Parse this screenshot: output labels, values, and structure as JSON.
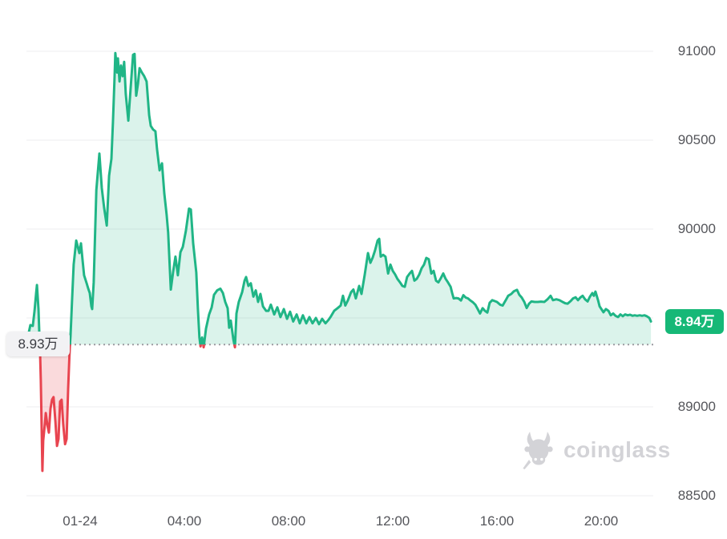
{
  "chart": {
    "baseline_label": "8.93万",
    "current_price_label": "8.94万"
  },
  "watermark": {
    "text": "coinglass"
  },
  "chart_data": {
    "type": "area",
    "title": "",
    "xlabel": "",
    "ylabel": "",
    "legend": "none",
    "grid": "horizontal",
    "x_axis": {
      "unit": "hours since 01-24 00:00",
      "ticks": [
        {
          "t": 0,
          "label": "01-24"
        },
        {
          "t": 4,
          "label": "04:00"
        },
        {
          "t": 8,
          "label": "08:00"
        },
        {
          "t": 12,
          "label": "12:00"
        },
        {
          "t": 16,
          "label": "16:00"
        },
        {
          "t": 20,
          "label": "20:00"
        }
      ]
    },
    "y_axis": {
      "min": 88500,
      "max": 91000,
      "ticks": [
        88500,
        89000,
        89500,
        90000,
        90500,
        91000
      ]
    },
    "baseline_price": 89350,
    "last_price": 89480,
    "colors": {
      "up": "#20b586",
      "up_fill": "rgba(34,181,133,0.16)",
      "down": "#e8444f",
      "down_fill": "rgba(232,68,79,0.20)",
      "badge": "#16b877",
      "grid": "#ececef",
      "baseline": "#9b9ba1",
      "axis_text": "#55565b",
      "watermark": "#d3d3d7"
    },
    "series": [
      {
        "name": "price",
        "points": [
          [
            -2.06,
            89380
          ],
          [
            -1.97,
            89420
          ],
          [
            -1.91,
            89460
          ],
          [
            -1.82,
            89455
          ],
          [
            -1.75,
            89540
          ],
          [
            -1.69,
            89640
          ],
          [
            -1.66,
            89685
          ],
          [
            -1.6,
            89550
          ],
          [
            -1.57,
            89420
          ],
          [
            -1.54,
            89325
          ],
          [
            -1.51,
            89150
          ],
          [
            -1.48,
            88900
          ],
          [
            -1.45,
            88640
          ],
          [
            -1.42,
            88810
          ],
          [
            -1.35,
            88910
          ],
          [
            -1.32,
            88965
          ],
          [
            -1.26,
            88900
          ],
          [
            -1.2,
            88855
          ],
          [
            -1.14,
            88990
          ],
          [
            -1.08,
            89040
          ],
          [
            -1.02,
            89055
          ],
          [
            -0.95,
            88920
          ],
          [
            -0.89,
            88780
          ],
          [
            -0.83,
            88820
          ],
          [
            -0.77,
            89030
          ],
          [
            -0.71,
            89040
          ],
          [
            -0.65,
            88900
          ],
          [
            -0.58,
            88790
          ],
          [
            -0.52,
            88820
          ],
          [
            -0.46,
            89100
          ],
          [
            -0.4,
            89330
          ],
          [
            -0.37,
            89400
          ],
          [
            -0.31,
            89600
          ],
          [
            -0.25,
            89800
          ],
          [
            -0.15,
            89935
          ],
          [
            -0.09,
            89900
          ],
          [
            -0.03,
            89865
          ],
          [
            0.03,
            89920
          ],
          [
            0.09,
            89830
          ],
          [
            0.15,
            89740
          ],
          [
            0.25,
            89695
          ],
          [
            0.31,
            89665
          ],
          [
            0.37,
            89640
          ],
          [
            0.43,
            89565
          ],
          [
            0.46,
            89550
          ],
          [
            0.52,
            89700
          ],
          [
            0.62,
            90220
          ],
          [
            0.74,
            90425
          ],
          [
            0.83,
            90230
          ],
          [
            0.92,
            90120
          ],
          [
            1.02,
            90020
          ],
          [
            1.11,
            90300
          ],
          [
            1.2,
            90395
          ],
          [
            1.26,
            90600
          ],
          [
            1.32,
            90850
          ],
          [
            1.35,
            90990
          ],
          [
            1.42,
            90880
          ],
          [
            1.45,
            90960
          ],
          [
            1.51,
            90830
          ],
          [
            1.57,
            90920
          ],
          [
            1.63,
            90860
          ],
          [
            1.69,
            90940
          ],
          [
            1.75,
            90760
          ],
          [
            1.85,
            90610
          ],
          [
            1.94,
            90800
          ],
          [
            2.03,
            90980
          ],
          [
            2.09,
            90985
          ],
          [
            2.15,
            90750
          ],
          [
            2.22,
            90820
          ],
          [
            2.28,
            90905
          ],
          [
            2.37,
            90880
          ],
          [
            2.46,
            90860
          ],
          [
            2.55,
            90830
          ],
          [
            2.65,
            90640
          ],
          [
            2.71,
            90580
          ],
          [
            2.8,
            90560
          ],
          [
            2.89,
            90550
          ],
          [
            2.95,
            90450
          ],
          [
            3.05,
            90330
          ],
          [
            3.14,
            90370
          ],
          [
            3.23,
            90200
          ],
          [
            3.32,
            90080
          ],
          [
            3.38,
            89980
          ],
          [
            3.48,
            89660
          ],
          [
            3.57,
            89760
          ],
          [
            3.66,
            89845
          ],
          [
            3.75,
            89740
          ],
          [
            3.85,
            89870
          ],
          [
            3.94,
            89900
          ],
          [
            4.06,
            89990
          ],
          [
            4.18,
            90115
          ],
          [
            4.25,
            90110
          ],
          [
            4.34,
            89920
          ],
          [
            4.46,
            89755
          ],
          [
            4.52,
            89550
          ],
          [
            4.58,
            89390
          ],
          [
            4.62,
            89340
          ],
          [
            4.68,
            89390
          ],
          [
            4.74,
            89335
          ],
          [
            4.83,
            89440
          ],
          [
            4.95,
            89520
          ],
          [
            5.05,
            89560
          ],
          [
            5.14,
            89630
          ],
          [
            5.26,
            89655
          ],
          [
            5.38,
            89665
          ],
          [
            5.48,
            89640
          ],
          [
            5.57,
            89590
          ],
          [
            5.66,
            89555
          ],
          [
            5.72,
            89445
          ],
          [
            5.78,
            89485
          ],
          [
            5.88,
            89380
          ],
          [
            5.94,
            89335
          ],
          [
            6.0,
            89525
          ],
          [
            6.09,
            89590
          ],
          [
            6.22,
            89645
          ],
          [
            6.31,
            89710
          ],
          [
            6.37,
            89730
          ],
          [
            6.46,
            89680
          ],
          [
            6.55,
            89695
          ],
          [
            6.65,
            89620
          ],
          [
            6.74,
            89655
          ],
          [
            6.83,
            89590
          ],
          [
            6.92,
            89635
          ],
          [
            7.02,
            89565
          ],
          [
            7.14,
            89540
          ],
          [
            7.23,
            89540
          ],
          [
            7.32,
            89575
          ],
          [
            7.45,
            89520
          ],
          [
            7.57,
            89560
          ],
          [
            7.69,
            89505
          ],
          [
            7.82,
            89550
          ],
          [
            7.94,
            89495
          ],
          [
            8.06,
            89535
          ],
          [
            8.18,
            89480
          ],
          [
            8.31,
            89520
          ],
          [
            8.43,
            89470
          ],
          [
            8.55,
            89515
          ],
          [
            8.68,
            89470
          ],
          [
            8.8,
            89505
          ],
          [
            8.92,
            89470
          ],
          [
            9.05,
            89500
          ],
          [
            9.17,
            89465
          ],
          [
            9.29,
            89495
          ],
          [
            9.42,
            89470
          ],
          [
            9.54,
            89490
          ],
          [
            9.63,
            89510
          ],
          [
            9.75,
            89540
          ],
          [
            9.88,
            89555
          ],
          [
            10.0,
            89570
          ],
          [
            10.09,
            89625
          ],
          [
            10.18,
            89570
          ],
          [
            10.28,
            89600
          ],
          [
            10.4,
            89645
          ],
          [
            10.49,
            89660
          ],
          [
            10.58,
            89610
          ],
          [
            10.71,
            89680
          ],
          [
            10.8,
            89635
          ],
          [
            10.92,
            89740
          ],
          [
            11.05,
            89865
          ],
          [
            11.14,
            89810
          ],
          [
            11.23,
            89840
          ],
          [
            11.32,
            89880
          ],
          [
            11.42,
            89935
          ],
          [
            11.48,
            89945
          ],
          [
            11.54,
            89845
          ],
          [
            11.63,
            89855
          ],
          [
            11.72,
            89845
          ],
          [
            11.82,
            89750
          ],
          [
            11.91,
            89800
          ],
          [
            12.0,
            89765
          ],
          [
            12.09,
            89745
          ],
          [
            12.18,
            89720
          ],
          [
            12.28,
            89700
          ],
          [
            12.37,
            89680
          ],
          [
            12.46,
            89675
          ],
          [
            12.55,
            89730
          ],
          [
            12.65,
            89750
          ],
          [
            12.74,
            89765
          ],
          [
            12.83,
            89710
          ],
          [
            12.92,
            89720
          ],
          [
            13.02,
            89745
          ],
          [
            13.11,
            89780
          ],
          [
            13.2,
            89800
          ],
          [
            13.29,
            89838
          ],
          [
            13.38,
            89830
          ],
          [
            13.48,
            89750
          ],
          [
            13.57,
            89765
          ],
          [
            13.66,
            89710
          ],
          [
            13.75,
            89700
          ],
          [
            13.85,
            89725
          ],
          [
            13.94,
            89750
          ],
          [
            14.03,
            89720
          ],
          [
            14.12,
            89700
          ],
          [
            14.22,
            89675
          ],
          [
            14.28,
            89640
          ],
          [
            14.34,
            89610
          ],
          [
            14.43,
            89612
          ],
          [
            14.52,
            89610
          ],
          [
            14.62,
            89598
          ],
          [
            14.71,
            89628
          ],
          [
            14.8,
            89615
          ],
          [
            14.89,
            89610
          ],
          [
            14.98,
            89598
          ],
          [
            15.08,
            89588
          ],
          [
            15.17,
            89575
          ],
          [
            15.26,
            89550
          ],
          [
            15.35,
            89525
          ],
          [
            15.45,
            89555
          ],
          [
            15.54,
            89540
          ],
          [
            15.63,
            89530
          ],
          [
            15.72,
            89585
          ],
          [
            15.82,
            89600
          ],
          [
            15.91,
            89595
          ],
          [
            16.0,
            89590
          ],
          [
            16.12,
            89575
          ],
          [
            16.22,
            89570
          ],
          [
            16.34,
            89600
          ],
          [
            16.43,
            89625
          ],
          [
            16.55,
            89635
          ],
          [
            16.65,
            89650
          ],
          [
            16.77,
            89658
          ],
          [
            16.86,
            89630
          ],
          [
            16.95,
            89615
          ],
          [
            17.05,
            89590
          ],
          [
            17.14,
            89556
          ],
          [
            17.23,
            89580
          ],
          [
            17.32,
            89593
          ],
          [
            17.45,
            89590
          ],
          [
            17.57,
            89590
          ],
          [
            17.69,
            89592
          ],
          [
            17.82,
            89590
          ],
          [
            17.94,
            89605
          ],
          [
            18.06,
            89625
          ],
          [
            18.15,
            89600
          ],
          [
            18.28,
            89605
          ],
          [
            18.4,
            89600
          ],
          [
            18.52,
            89590
          ],
          [
            18.62,
            89583
          ],
          [
            18.71,
            89580
          ],
          [
            18.83,
            89595
          ],
          [
            18.92,
            89610
          ],
          [
            19.02,
            89616
          ],
          [
            19.11,
            89600
          ],
          [
            19.2,
            89615
          ],
          [
            19.29,
            89625
          ],
          [
            19.38,
            89605
          ],
          [
            19.48,
            89593
          ],
          [
            19.57,
            89620
          ],
          [
            19.66,
            89640
          ],
          [
            19.72,
            89625
          ],
          [
            19.78,
            89648
          ],
          [
            19.88,
            89600
          ],
          [
            19.94,
            89565
          ],
          [
            20.03,
            89545
          ],
          [
            20.09,
            89532
          ],
          [
            20.18,
            89550
          ],
          [
            20.28,
            89540
          ],
          [
            20.37,
            89515
          ],
          [
            20.46,
            89525
          ],
          [
            20.55,
            89512
          ],
          [
            20.65,
            89505
          ],
          [
            20.74,
            89520
          ],
          [
            20.83,
            89510
          ],
          [
            20.92,
            89520
          ],
          [
            21.02,
            89515
          ],
          [
            21.11,
            89518
          ],
          [
            21.2,
            89512
          ],
          [
            21.29,
            89515
          ],
          [
            21.38,
            89512
          ],
          [
            21.48,
            89515
          ],
          [
            21.57,
            89512
          ],
          [
            21.66,
            89515
          ],
          [
            21.75,
            89510
          ],
          [
            21.85,
            89500
          ],
          [
            21.91,
            89480
          ]
        ]
      }
    ]
  }
}
